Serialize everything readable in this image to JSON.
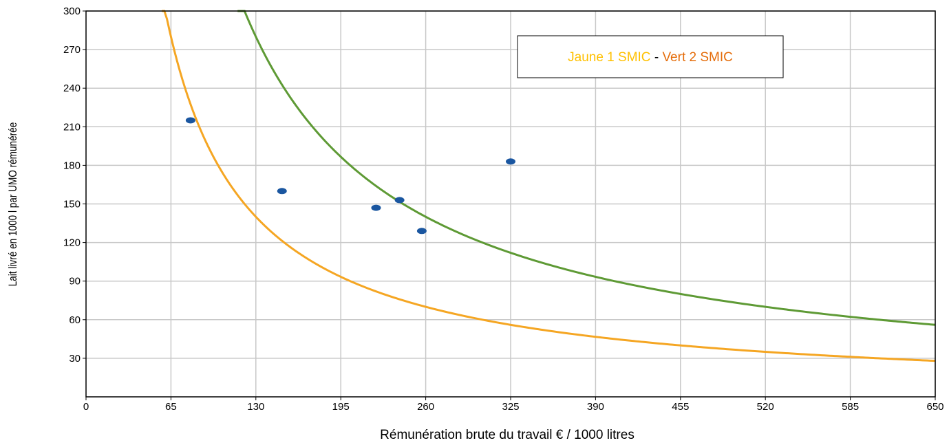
{
  "chart_data": {
    "type": "scatter",
    "title": "",
    "xlabel": "Rémunération brute du travail € / 1000 litres",
    "ylabel": "Lait livré en 1000 l par UMO rémunérée",
    "xlim": [
      0,
      650
    ],
    "ylim": [
      0,
      300
    ],
    "xticks": [
      0,
      65,
      130,
      195,
      260,
      325,
      390,
      455,
      520,
      585,
      650
    ],
    "yticks": [
      30,
      60,
      90,
      120,
      150,
      180,
      210,
      240,
      270,
      300
    ],
    "xtick_labels": [
      "0",
      "65",
      "130",
      "195",
      "260",
      "325",
      "390",
      "455",
      "520",
      "585",
      "650"
    ],
    "ytick_labels": [
      "30",
      "60",
      "90",
      "120",
      "150",
      "180",
      "210",
      "240",
      "270",
      "300"
    ],
    "grid": true,
    "legend": {
      "placement": "top-center",
      "part1": "Jaune 1 SMIC",
      "separator": " - ",
      "part2": "Vert 2 SMIC",
      "color1": "#FFC000",
      "color2": "#E46C0A"
    },
    "curves": [
      {
        "id": "jaune-1-smic",
        "k": 18200,
        "color": "#F5A623",
        "x_start": 58,
        "x_end": 650
      },
      {
        "id": "vert-2-smic",
        "k": 36400,
        "color": "#5E9A35",
        "x_start": 116,
        "x_end": 650
      }
    ],
    "points": {
      "color": "#1A56A0",
      "x": [
        80,
        150,
        222,
        240,
        257,
        325
      ],
      "y": [
        215,
        160,
        147,
        153,
        129,
        183
      ]
    }
  }
}
